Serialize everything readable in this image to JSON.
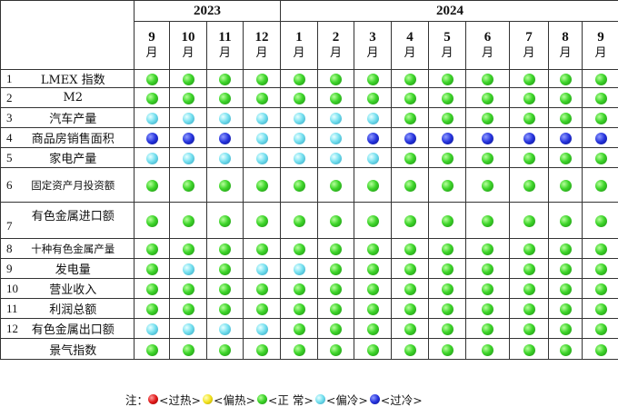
{
  "years": [
    "2023",
    "2024"
  ],
  "year_spans": [
    4,
    9
  ],
  "month_char": "月",
  "months": [
    "9",
    "10",
    "11",
    "12",
    "1",
    "2",
    "3",
    "4",
    "5",
    "6",
    "7",
    "8",
    "9"
  ],
  "rows": [
    {
      "idx": "1",
      "name": "LMEX 指数",
      "statuses": [
        "green",
        "green",
        "green",
        "green",
        "green",
        "green",
        "green",
        "green",
        "green",
        "green",
        "green",
        "green",
        "green"
      ]
    },
    {
      "idx": "2",
      "name": "M2",
      "statuses": [
        "green",
        "green",
        "green",
        "green",
        "green",
        "green",
        "green",
        "green",
        "green",
        "green",
        "green",
        "green",
        "green"
      ]
    },
    {
      "idx": "3",
      "name": "汽车产量",
      "statuses": [
        "cyan",
        "cyan",
        "cyan",
        "cyan",
        "cyan",
        "cyan",
        "cyan",
        "green",
        "green",
        "green",
        "green",
        "green",
        "green"
      ]
    },
    {
      "idx": "4",
      "name": "商品房销售面积",
      "statuses": [
        "blue",
        "blue",
        "blue",
        "cyan",
        "cyan",
        "cyan",
        "blue",
        "blue",
        "blue",
        "blue",
        "blue",
        "blue",
        "blue"
      ]
    },
    {
      "idx": "5",
      "name": "家电产量",
      "statuses": [
        "cyan",
        "cyan",
        "cyan",
        "cyan",
        "cyan",
        "cyan",
        "cyan",
        "green",
        "green",
        "green",
        "green",
        "green",
        "green"
      ]
    },
    {
      "idx": "6",
      "name": "固定资产月投资额",
      "statuses": [
        "green",
        "green",
        "green",
        "green",
        "green",
        "green",
        "green",
        "green",
        "green",
        "green",
        "green",
        "green",
        "green"
      ]
    },
    {
      "idx": "7",
      "name": "有色金属进口额",
      "statuses": [
        "green",
        "green",
        "green",
        "green",
        "green",
        "green",
        "green",
        "green",
        "green",
        "green",
        "green",
        "green",
        "green"
      ]
    },
    {
      "idx": "8",
      "name": "十种有色金属产量",
      "statuses": [
        "green",
        "green",
        "green",
        "green",
        "green",
        "green",
        "green",
        "green",
        "green",
        "green",
        "green",
        "green",
        "green"
      ]
    },
    {
      "idx": "9",
      "name": "发电量",
      "statuses": [
        "green",
        "cyan",
        "green",
        "cyan",
        "cyan",
        "green",
        "green",
        "green",
        "green",
        "green",
        "green",
        "green",
        "green"
      ]
    },
    {
      "idx": "10",
      "name": "营业收入",
      "statuses": [
        "green",
        "green",
        "green",
        "green",
        "green",
        "green",
        "green",
        "green",
        "green",
        "green",
        "green",
        "green",
        "green"
      ]
    },
    {
      "idx": "11",
      "name": "利润总额",
      "statuses": [
        "green",
        "green",
        "green",
        "green",
        "green",
        "green",
        "green",
        "green",
        "green",
        "green",
        "green",
        "green",
        "green"
      ]
    },
    {
      "idx": "12",
      "name": "有色金属出口额",
      "statuses": [
        "cyan",
        "cyan",
        "cyan",
        "cyan",
        "green",
        "green",
        "green",
        "green",
        "green",
        "green",
        "green",
        "green",
        "green"
      ]
    },
    {
      "idx": "",
      "name": "景气指数",
      "statuses": [
        "green",
        "green",
        "green",
        "green",
        "green",
        "green",
        "green",
        "green",
        "green",
        "green",
        "green",
        "green",
        "green"
      ]
    }
  ],
  "legend": {
    "prefix": "注：",
    "items": [
      {
        "color": "red",
        "label": "<过热>"
      },
      {
        "color": "yellow",
        "label": "<偏热>"
      },
      {
        "color": "green",
        "label": "<正 常>"
      },
      {
        "color": "cyan",
        "label": "<偏冷>"
      },
      {
        "color": "blue",
        "label": "<过冷>"
      }
    ]
  }
}
